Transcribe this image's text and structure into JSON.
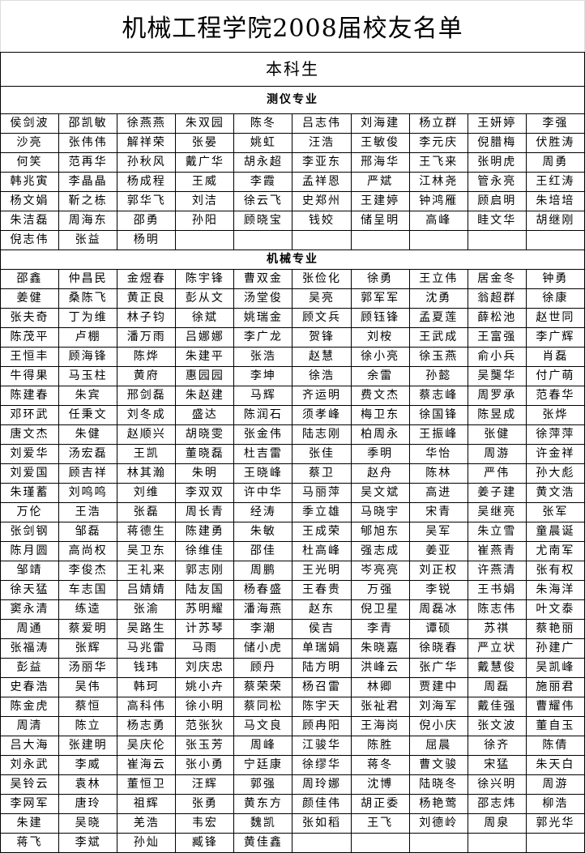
{
  "title": "机械工程学院2008届校友名单",
  "level": "本科生",
  "majors": [
    {
      "name": "测仪专业",
      "rows": [
        [
          "侯剑波",
          "邵凯敏",
          "徐燕燕",
          "朱双园",
          "陈冬",
          "吕志伟",
          "刘海建",
          "杨立群",
          "王妍婷",
          "李强"
        ],
        [
          "沙亮",
          "张伟伟",
          "解祥荣",
          "张晏",
          "姚虹",
          "汪浩",
          "王敏俊",
          "李元庆",
          "倪腊梅",
          "伏胜涛"
        ],
        [
          "何笑",
          "范再华",
          "孙秋风",
          "戴广华",
          "胡永超",
          "李亚东",
          "邢海华",
          "王飞来",
          "张明虎",
          "周勇"
        ],
        [
          "韩兆寅",
          "李晶晶",
          "杨成程",
          "王威",
          "李霞",
          "孟祥恩",
          "严斌",
          "江林尧",
          "管永亮",
          "王红涛"
        ],
        [
          "杨文娟",
          "靳之栋",
          "郭华飞",
          "刘洁",
          "徐云飞",
          "史郑州",
          "王建婷",
          "钟鸿雁",
          "顾启明",
          "朱培培"
        ],
        [
          "朱洁磊",
          "周海东",
          "邵勇",
          "孙阳",
          "顾晓宝",
          "钱姣",
          "储呈明",
          "高峰",
          "眭文华",
          "胡继刚"
        ],
        [
          "倪志伟",
          "张益",
          "杨明",
          "",
          "",
          "",
          "",
          "",
          "",
          ""
        ]
      ]
    },
    {
      "name": "机械专业",
      "rows": [
        [
          "邵鑫",
          "仲昌民",
          "金煜春",
          "陈宇锋",
          "曹双金",
          "张俭化",
          "徐勇",
          "王立伟",
          "居金冬",
          "钟勇"
        ],
        [
          "姜健",
          "桑陈飞",
          "黄正良",
          "彭从文",
          "汤堂俊",
          "吴亮",
          "郭军军",
          "沈勇",
          "翁超群",
          "徐康"
        ],
        [
          "张夫奇",
          "丁为维",
          "林子钧",
          "徐斌",
          "姚瑞金",
          "顾文兵",
          "顾钰锋",
          "孟夏莲",
          "薛松池",
          "赵世同"
        ],
        [
          "陈茂平",
          "卢棚",
          "潘万雨",
          "吕娜娜",
          "李广龙",
          "贺锋",
          "刘桉",
          "王武成",
          "王富强",
          "李广辉"
        ],
        [
          "王恒丰",
          "顾海锋",
          "陈烨",
          "朱建平",
          "张浩",
          "赵慧",
          "徐小亮",
          "徐玉燕",
          "俞小兵",
          "肖磊"
        ],
        [
          "牛得果",
          "马玉柱",
          "黄府",
          "惠园园",
          "李坤",
          "徐浩",
          "余雷",
          "孙懿",
          "吴龑华",
          "付广萌"
        ],
        [
          "陈建春",
          "朱宾",
          "邢剑磊",
          "朱赵建",
          "马辉",
          "齐运明",
          "费文杰",
          "蔡志峰",
          "周罗承",
          "范春华"
        ],
        [
          "邓环武",
          "任秉文",
          "刘冬成",
          "盛达",
          "陈润石",
          "须孝峰",
          "梅卫东",
          "徐国锋",
          "陈昱成",
          "张烨"
        ],
        [
          "唐文杰",
          "朱健",
          "赵顺兴",
          "胡晓雯",
          "张金伟",
          "陆志刚",
          "柏周永",
          "王振峰",
          "张健",
          "徐萍萍"
        ],
        [
          "刘爱华",
          "汤宏磊",
          "王凯",
          "董晓磊",
          "杜吉雷",
          "张佳",
          "季明",
          "华怡",
          "周游",
          "许金祥"
        ],
        [
          "刘爱国",
          "顾吉祥",
          "林其瀚",
          "朱明",
          "王晓峰",
          "蔡卫",
          "赵舟",
          "陈林",
          "严伟",
          "孙大彪"
        ],
        [
          "朱瑾蓄",
          "刘鸣鸣",
          "刘维",
          "李双双",
          "许中华",
          "马丽萍",
          "吴文斌",
          "高进",
          "姜子建",
          "黄文浩"
        ],
        [
          "万伦",
          "王浩",
          "张磊",
          "周长青",
          "经涛",
          "季立雄",
          "马晓宇",
          "宋青",
          "吴继亮",
          "张军"
        ],
        [
          "张剑钢",
          "邹磊",
          "蒋德生",
          "陈建勇",
          "朱敏",
          "王成荣",
          "郇旭东",
          "吴军",
          "朱立雪",
          "童晨诞"
        ],
        [
          "陈月圆",
          "高尚权",
          "吴卫东",
          "徐维佳",
          "邵佳",
          "杜高峰",
          "强志成",
          "姜亚",
          "崔燕青",
          "尤南军"
        ],
        [
          "邹靖",
          "李俊杰",
          "王礼来",
          "郭志刚",
          "周鹏",
          "王光明",
          "岑亮亮",
          "刘正权",
          "许燕清",
          "张有权"
        ],
        [
          "徐天猛",
          "车志国",
          "吕婧婧",
          "陆友国",
          "杨春盛",
          "王春贵",
          "万强",
          "李锐",
          "王书娟",
          "朱海洋"
        ],
        [
          "窦永清",
          "练逵",
          "张渝",
          "苏明耀",
          "潘海燕",
          "赵东",
          "倪卫星",
          "周磊冰",
          "陈志伟",
          "叶文泰"
        ],
        [
          "周通",
          "蔡爱明",
          "吴路生",
          "计苏琴",
          "李潮",
          "侯吉",
          "李青",
          "谭硕",
          "苏祺",
          "蔡艳丽"
        ],
        [
          "张福涛",
          "张辉",
          "马兆雷",
          "马雨",
          "储小虎",
          "单瑞娟",
          "朱晓嘉",
          "徐晓春",
          "严立状",
          "孙建广"
        ],
        [
          "彭益",
          "汤丽华",
          "钱玮",
          "刘庆忠",
          "顾丹",
          "陆方明",
          "洪峰云",
          "张广华",
          "戴慧俊",
          "吴凯峰"
        ],
        [
          "史春浩",
          "吴伟",
          "韩珂",
          "姚小卉",
          "蔡荣荣",
          "杨召雷",
          "林卿",
          "贾建中",
          "周磊",
          "施丽君"
        ],
        [
          "陈金虎",
          "蔡恒",
          "高科伟",
          "徐小明",
          "蔡同松",
          "陈宇天",
          "张祉君",
          "刘海军",
          "戴佳强",
          "曹耀伟"
        ],
        [
          "周清",
          "陈立",
          "杨志勇",
          "范张狄",
          "马文良",
          "顾冉阳",
          "王海岗",
          "倪小庆",
          "张文波",
          "董自玉"
        ],
        [
          "吕大海",
          "张建明",
          "吴庆伦",
          "张玉芳",
          "周峰",
          "江骏华",
          "陈胜",
          "屈晨",
          "徐齐",
          "陈倩"
        ],
        [
          "刘永武",
          "李威",
          "崔海云",
          "张小勇",
          "宁廷康",
          "徐缪华",
          "蒋冬",
          "曹文骏",
          "宋猛",
          "朱天白"
        ],
        [
          "吴铃云",
          "袁林",
          "董恒卫",
          "汪辉",
          "郭强",
          "周玲娜",
          "沈博",
          "陆晓冬",
          "徐兴明",
          "周游"
        ],
        [
          "李网军",
          "唐玲",
          "祖辉",
          "张勇",
          "黄东方",
          "颜佳伟",
          "胡正委",
          "杨艳莺",
          "邵志炜",
          "柳浩"
        ],
        [
          "朱建",
          "吴晓",
          "羌浩",
          "韦宏",
          "魏凯",
          "张如稻",
          "王飞",
          "刘德岭",
          "周泉",
          "郭光华"
        ],
        [
          "蒋飞",
          "李斌",
          "孙灿",
          "臧锋",
          "黄佳鑫",
          "",
          "",
          "",
          "",
          ""
        ]
      ]
    }
  ]
}
